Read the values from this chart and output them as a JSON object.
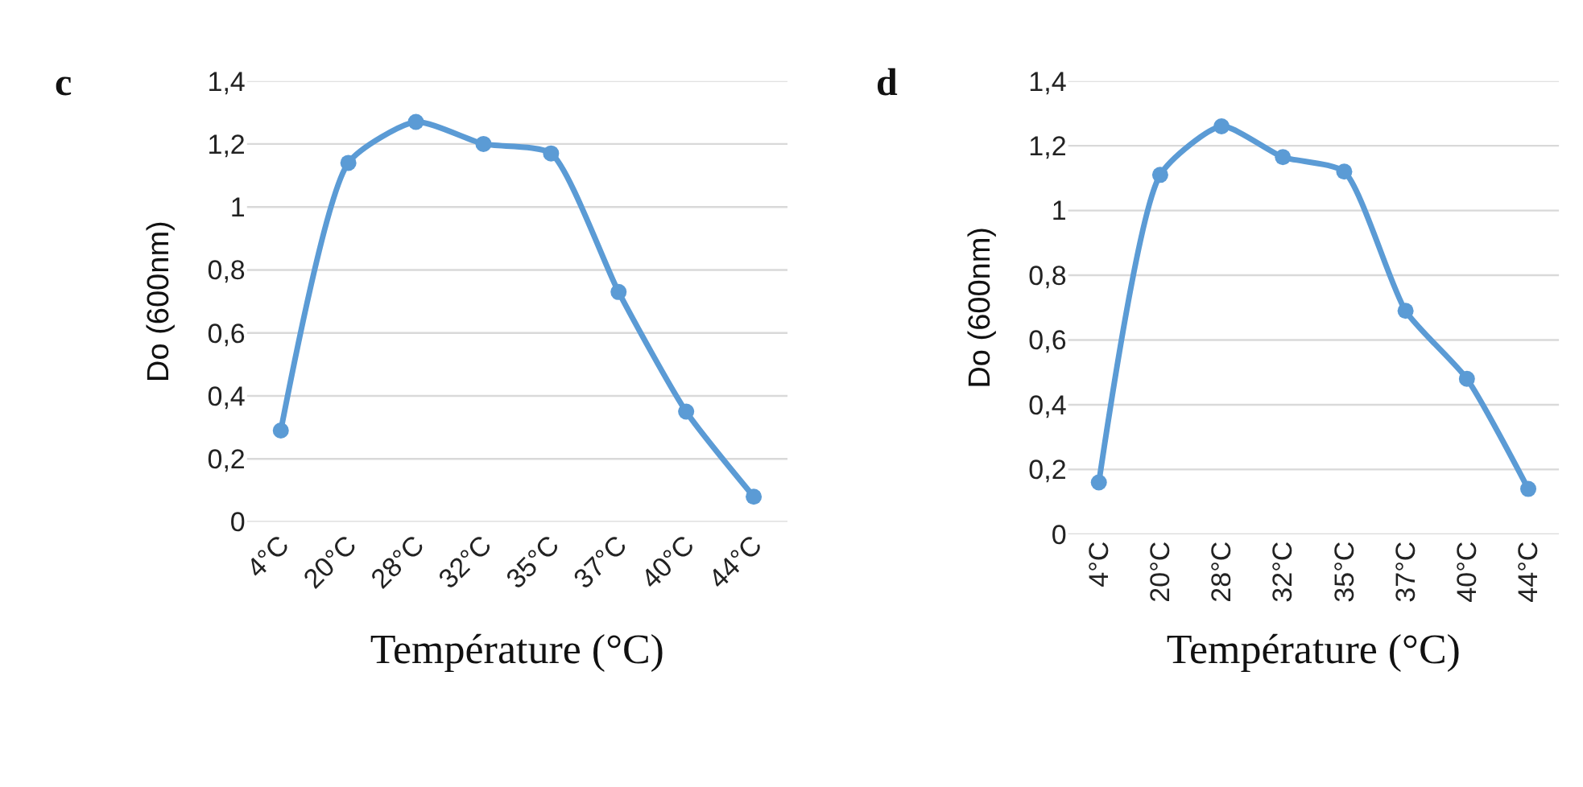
{
  "chart_data": [
    {
      "type": "line",
      "title": "c",
      "xlabel": "Température (°C)",
      "ylabel": "Do (600nm)",
      "categories": [
        "4°C",
        "20°C",
        "28°C",
        "32°C",
        "35°C",
        "37°C",
        "40°C",
        "44°C"
      ],
      "series": [
        {
          "color": "#5b9bd5",
          "values": [
            0.29,
            1.14,
            1.27,
            1.2,
            1.17,
            0.73,
            0.35,
            0.08
          ]
        }
      ],
      "ylim": [
        0,
        1.4
      ],
      "yticks": [
        0,
        {
          "value": 0.2,
          "label": "0,2"
        },
        {
          "value": 0.4,
          "label": "0,4"
        },
        {
          "value": 0.6,
          "label": "0,6"
        },
        {
          "value": 0.8,
          "label": "0,8"
        },
        1,
        {
          "value": 1.2,
          "label": "1,2"
        },
        {
          "value": 1.4,
          "label": "1,4"
        }
      ],
      "grid": "y",
      "marker": "circle",
      "line_style": "solid"
    },
    {
      "type": "line",
      "title": "d",
      "xlabel": "Température (°C)",
      "ylabel": "Do (600nm)",
      "categories": [
        "4°C",
        "20°C",
        "28°C",
        "32°C",
        "35°C",
        "37°C",
        "40°C",
        "44°C"
      ],
      "series": [
        {
          "color": "#5b9bd5",
          "values": [
            0.16,
            1.11,
            1.26,
            1.165,
            1.12,
            0.69,
            0.48,
            0.14
          ]
        }
      ],
      "ylim": [
        0,
        1.4
      ],
      "yticks": [
        0,
        {
          "value": 0.2,
          "label": "0,2"
        },
        {
          "value": 0.4,
          "label": "0,4"
        },
        {
          "value": 0.6,
          "label": "0,6"
        },
        {
          "value": 0.8,
          "label": "0,8"
        },
        1,
        {
          "value": 1.2,
          "label": "1,2"
        },
        {
          "value": 1.4,
          "label": "1,4"
        }
      ],
      "grid": "y",
      "marker": "circle",
      "line_style": "solid"
    }
  ]
}
